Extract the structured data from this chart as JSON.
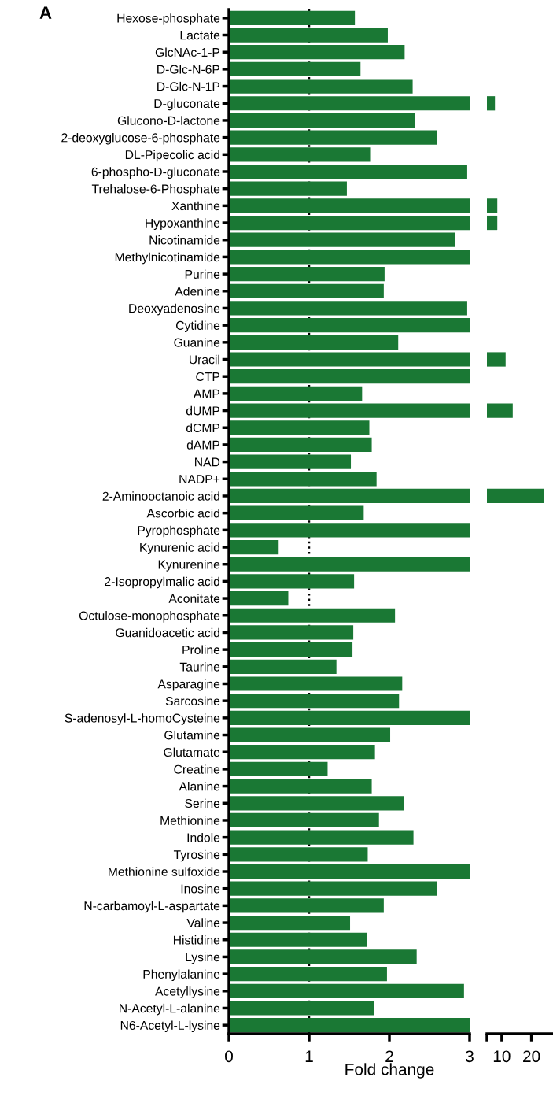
{
  "chart_data": [
    {
      "type": "bar",
      "orientation": "horizontal",
      "xlabel": "Fold change",
      "annotations": [
        "A"
      ],
      "categories": [
        "Hexose-phosphate",
        "Lactate",
        "GlcNAc-1-P",
        "D-Glc-N-6P",
        "D-Glc-N-1P",
        "D-gluconate",
        "Glucono-D-lactone",
        "2-deoxyglucose-6-phosphate",
        "DL-Pipecolic acid",
        "6-phospho-D-gluconate",
        "Trehalose-6-Phosphate",
        "Xanthine",
        "Hypoxanthine",
        "Nicotinamide",
        "Methylnicotinamide",
        "Purine",
        "Adenine",
        "Deoxyadenosine",
        "Cytidine",
        "Guanine",
        "Uracil",
        "CTP",
        "AMP",
        "dUMP",
        "dCMP",
        "dAMP",
        "NAD",
        "NADP+",
        "2-Aminooctanoic acid",
        "Ascorbic acid",
        "Pyrophosphate",
        "Kynurenic acid",
        "Kynurenine",
        "2-Isopropylmalic acid",
        "Aconitate",
        "Octulose-monophosphate",
        "Guanidoacetic acid",
        "Proline",
        "Taurine",
        "Asparagine",
        "Sarcosine",
        "S-adenosyl-L-homoCysteine",
        "Glutamine",
        "Glutamate",
        "Creatine",
        "Alanine",
        "Serine",
        "Methionine",
        "Indole",
        "Tyrosine",
        "Methionine sulfoxide",
        "Inosine",
        "N-carbamoyl-L-aspartate",
        "Valine",
        "Histidine",
        "Lysine",
        "Phenylalanine",
        "Acetyllysine",
        "N-Acetyl-L-alanine",
        "N6-Acetyl-L-lysine"
      ],
      "values": [
        1.57,
        1.98,
        2.19,
        1.64,
        2.29,
        3,
        2.32,
        2.59,
        1.76,
        2.97,
        1.47,
        3,
        3,
        2.82,
        3,
        1.94,
        1.93,
        2.97,
        3,
        2.11,
        3,
        3,
        1.66,
        3,
        1.75,
        1.78,
        1.52,
        1.84,
        3,
        1.68,
        3,
        0.62,
        3,
        1.56,
        0.74,
        2.07,
        1.55,
        1.54,
        1.34,
        2.16,
        2.12,
        3,
        2.01,
        1.82,
        1.23,
        1.78,
        2.18,
        1.87,
        2.3,
        1.73,
        3,
        2.59,
        1.93,
        1.51,
        1.72,
        2.34,
        1.97,
        2.93,
        1.81,
        3
      ],
      "color": "#1a7834",
      "xlim": [
        0,
        3
      ],
      "xticks": [
        0,
        1,
        2,
        3
      ],
      "ref_lines": [
        {
          "axis": "x",
          "value": 1,
          "line_style": "dotted",
          "color": "#000000"
        }
      ]
    },
    {
      "type": "bar",
      "orientation": "horizontal",
      "tick_labels": "x",
      "categories": [
        null,
        null,
        null,
        null,
        null,
        null,
        null,
        null,
        null,
        null,
        null,
        null,
        null,
        null,
        null,
        null,
        null,
        null,
        null,
        null,
        null,
        null,
        null,
        null,
        null,
        null,
        null,
        null,
        null,
        null,
        null,
        null,
        null,
        null,
        null,
        null,
        null,
        null,
        null,
        null,
        null,
        null,
        null,
        null,
        null,
        null,
        null,
        null,
        null,
        null,
        null,
        null,
        null,
        null,
        null,
        null,
        null,
        null,
        null,
        null
      ],
      "values": [
        null,
        null,
        null,
        null,
        null,
        7.7,
        null,
        null,
        null,
        null,
        null,
        8.5,
        8.5,
        null,
        null,
        null,
        null,
        null,
        null,
        null,
        11.3,
        null,
        null,
        13.7,
        null,
        null,
        null,
        null,
        24.2,
        null,
        null,
        null,
        null,
        null,
        null,
        null,
        null,
        null,
        null,
        null,
        null,
        null,
        null,
        null,
        null,
        null,
        null,
        null,
        null,
        null,
        null,
        null,
        null,
        null,
        null,
        null,
        null,
        null,
        null,
        null
      ],
      "color": "#1a7834",
      "xlim": [
        5,
        27
      ],
      "xticks": [
        {
          "value": 5,
          "label": null
        },
        10,
        20
      ]
    }
  ]
}
